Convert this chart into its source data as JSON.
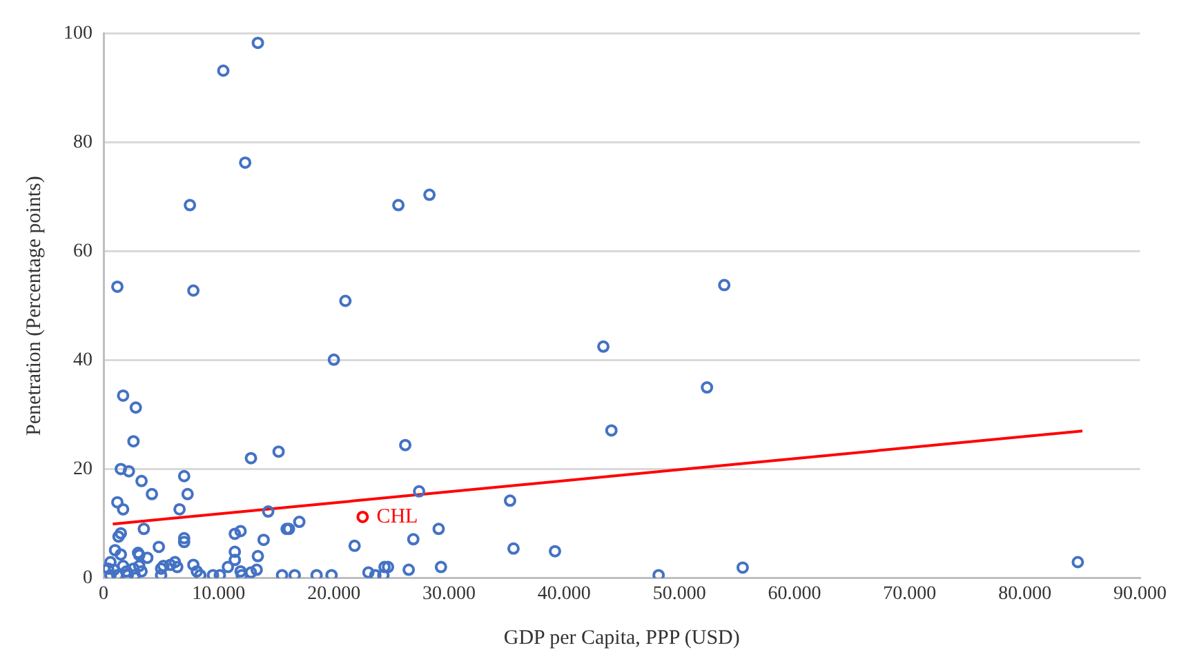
{
  "chart_data": {
    "type": "scatter",
    "xlabel": "GDP per Capita, PPP (USD)",
    "ylabel": "Penetration (Percentage points)",
    "xlim": [
      0,
      90000
    ],
    "xticks": [
      0,
      {
        "value": 10000,
        "label": "10.000"
      },
      {
        "value": 20000,
        "label": "20.000"
      },
      {
        "value": 30000,
        "label": "30.000"
      },
      {
        "value": 40000,
        "label": "40.000"
      },
      {
        "value": 50000,
        "label": "50.000"
      },
      {
        "value": 60000,
        "label": "60.000"
      },
      {
        "value": 70000,
        "label": "70.000"
      },
      {
        "value": 80000,
        "label": "80.000"
      },
      {
        "value": 90000,
        "label": "90.000"
      }
    ],
    "ylim": [
      0,
      100
    ],
    "yticks": [
      0,
      20,
      40,
      60,
      80,
      100
    ],
    "grid": "y",
    "legend": false,
    "marker": "circle",
    "series": [
      {
        "color": "#4472c4",
        "x": [
          13400,
          10400,
          12300,
          7500,
          25600,
          28300,
          7800,
          1200,
          21000,
          53900,
          20000,
          43400,
          52400,
          44100,
          26200,
          15200,
          12800,
          27400,
          35300,
          29100,
          35600,
          39200,
          26900,
          21800,
          16100,
          1700,
          2800,
          2600,
          1500,
          2200,
          3300,
          7000,
          4200,
          7300,
          1200,
          1700,
          6600,
          14300,
          3500,
          1500,
          1300,
          4800,
          7000,
          7000,
          11400,
          11900,
          13900,
          15900,
          17000,
          1000,
          1500,
          3000,
          3100,
          3800,
          600,
          11400,
          11400,
          13400,
          84600,
          55500,
          48200,
          400,
          900,
          1700,
          2000,
          2600,
          3100,
          3300,
          5000,
          5200,
          5800,
          6200,
          6400,
          7800,
          8100,
          8400,
          9500,
          10100,
          10800,
          11900,
          12000,
          12800,
          13300,
          15500,
          16600,
          18500,
          19800,
          600,
          1200,
          2100,
          2700,
          5000,
          23000,
          23600,
          24300,
          24400,
          24700,
          26500,
          29300
        ],
        "values": [
          98.3,
          93.2,
          76.3,
          68.5,
          68.5,
          70.4,
          52.8,
          53.5,
          50.9,
          53.8,
          40.1,
          42.5,
          35.0,
          27.1,
          24.4,
          23.2,
          22.0,
          15.9,
          14.2,
          9.0,
          5.4,
          4.9,
          7.1,
          5.9,
          9.0,
          33.5,
          31.3,
          25.1,
          20.0,
          19.6,
          17.8,
          18.7,
          15.4,
          15.4,
          13.9,
          12.6,
          12.6,
          12.2,
          9.0,
          8.2,
          7.6,
          5.7,
          7.3,
          6.6,
          8.1,
          8.6,
          7.0,
          9.0,
          10.3,
          5.1,
          4.3,
          4.6,
          4.2,
          3.7,
          2.9,
          4.8,
          3.3,
          4.0,
          2.9,
          1.9,
          0.5,
          1.7,
          1.5,
          2.2,
          1.2,
          1.7,
          2.2,
          1.2,
          1.7,
          2.2,
          2.4,
          2.9,
          2.0,
          2.4,
          1.2,
          0.5,
          0.5,
          0.5,
          2.0,
          1.2,
          0.5,
          1.0,
          1.5,
          0.5,
          0.5,
          0.5,
          0.5,
          0.5,
          0.5,
          0.5,
          0.5,
          0.5,
          1.0,
          0.5,
          0.5,
          2.0,
          2.0,
          1.5,
          2.0
        ]
      },
      {
        "color": "#ff0000",
        "x": [
          22500
        ],
        "values": [
          11.2
        ]
      },
      {
        "type": "line",
        "color": "#ff0000",
        "marker": "none",
        "x": [
          800,
          85000
        ],
        "values": [
          9.9,
          27.0
        ]
      }
    ],
    "annotations": [
      {
        "text": "CHL",
        "x": 22500,
        "y": 11.2
      }
    ]
  }
}
